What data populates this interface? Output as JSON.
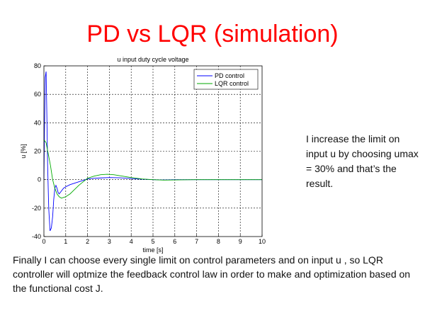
{
  "slide": {
    "title": "PD vs LQR (simulation)",
    "side_note": "I increase the limit on input u by choosing umax = 30% and that’s the result.",
    "bottom_text": "Finally I can choose every single limit on control parameters and on input u , so LQR controller will optmize the feedback control law in order to make and optimization based on the functional cost J."
  },
  "chart_data": {
    "type": "line",
    "title": "u input duty cycle voltage",
    "xlabel": "time [s]",
    "ylabel": "u [%]",
    "xlim": [
      0,
      10
    ],
    "ylim": [
      -40,
      80
    ],
    "xticks": [
      0,
      1,
      2,
      3,
      4,
      5,
      6,
      7,
      8,
      9,
      10
    ],
    "yticks": [
      -40,
      -20,
      0,
      20,
      40,
      60,
      80
    ],
    "grid": true,
    "grid_style": "dashed",
    "legend_position": "top-right",
    "series": [
      {
        "name": "PD control",
        "color": "#0000ff",
        "x": [
          0,
          0.03,
          0.06,
          0.1,
          0.13,
          0.17,
          0.22,
          0.28,
          0.34,
          0.4,
          0.45,
          0.5,
          0.55,
          0.6,
          0.65,
          0.7,
          0.8,
          0.9,
          1.0,
          1.2,
          1.5,
          1.8,
          2.0,
          2.3,
          2.6,
          3.0,
          3.5,
          4.0,
          4.5,
          5.0,
          5.5,
          6.0,
          7.0,
          8.0,
          9.0,
          10.0
        ],
        "y": [
          0,
          40,
          72,
          76,
          50,
          10,
          -20,
          -36,
          -34,
          -26,
          -14,
          -6,
          -4,
          -6,
          -9,
          -10,
          -8,
          -6,
          -5,
          -3.5,
          -2,
          -0.5,
          0.5,
          1,
          1.2,
          1.5,
          1.3,
          0.8,
          0.3,
          0,
          -0.2,
          0,
          0,
          0,
          0,
          0
        ]
      },
      {
        "name": "LQR control",
        "color": "#00aa00",
        "x": [
          0,
          0.05,
          0.1,
          0.2,
          0.3,
          0.4,
          0.5,
          0.6,
          0.7,
          0.8,
          0.9,
          1.0,
          1.2,
          1.4,
          1.6,
          1.8,
          2.0,
          2.3,
          2.6,
          2.9,
          3.2,
          3.6,
          4.0,
          4.5,
          5.0,
          5.5,
          6.0,
          7.0,
          8.0,
          9.0,
          10.0
        ],
        "y": [
          28,
          27,
          26,
          18,
          10,
          0,
          -6,
          -10,
          -12,
          -13,
          -12.5,
          -12,
          -10,
          -7,
          -4,
          -1.5,
          1,
          2.5,
          3.5,
          3.8,
          3.5,
          2.5,
          1.5,
          0.5,
          0,
          -0.3,
          -0.2,
          0,
          0,
          0,
          0
        ]
      }
    ]
  }
}
